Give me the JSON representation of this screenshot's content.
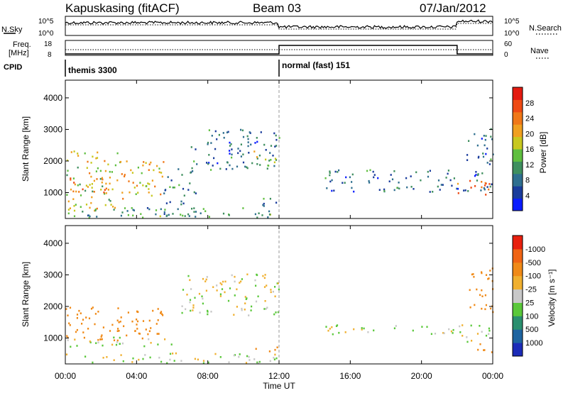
{
  "header": {
    "radar": "Kapuskasing (fitACF)",
    "beam": "Beam 03",
    "date": "07/Jan/2012"
  },
  "noise_panel": {
    "left_label": "N.Sky",
    "right_label": "N.Search",
    "left_ticks": [
      "10^5",
      "10^0"
    ],
    "right_ticks": [
      "10^5",
      "10^0"
    ]
  },
  "freq_panel": {
    "left_label_1": "Freq.",
    "left_label_2": "[MHz]",
    "right_label": "Nave",
    "left_ticks": [
      "18",
      "8"
    ],
    "right_ticks": [
      "60",
      "0"
    ]
  },
  "cpid_panel": {
    "label": "CPID",
    "segments": [
      {
        "label": "themis 3300",
        "start_h": 0,
        "end_h": 12
      },
      {
        "label": "normal (fast) 151",
        "start_h": 12,
        "end_h": 24
      }
    ]
  },
  "x_axis": {
    "title": "Time UT",
    "ticks": [
      "00:00",
      "04:00",
      "08:00",
      "12:00",
      "16:00",
      "20:00",
      "00:00"
    ],
    "range_h": [
      0,
      24
    ]
  },
  "power_colorbar": {
    "title": "Power [dB]",
    "ticks": [
      "4",
      "8",
      "12",
      "16",
      "20",
      "24",
      "28"
    ],
    "colors": [
      "#0a1cff",
      "#1a3c9c",
      "#2f6f8f",
      "#3f8f5f",
      "#5fbf3f",
      "#c8c820",
      "#f0a020",
      "#f07818",
      "#ee4a14",
      "#e41a10"
    ]
  },
  "velocity_colorbar": {
    "title": "Velocity [m s⁻¹]",
    "ticks": [
      "1000",
      "500",
      "100",
      "25",
      "-25",
      "-100",
      "-500",
      "-1000"
    ],
    "colors": [
      "#1c2cb8",
      "#1e64a0",
      "#2a8f6f",
      "#5ac83a",
      "#c8c8c8",
      "#f0b030",
      "#f08a18",
      "#f06414",
      "#e8200e"
    ]
  },
  "chart_data": [
    {
      "type": "heatmap",
      "title": "",
      "xlabel": "Time UT",
      "ylabel": "Slant Range [km]",
      "xlim_h": [
        0,
        24
      ],
      "ylim_km": [
        180,
        4560
      ],
      "yticks": [
        "1000",
        "2000",
        "3000",
        "4000"
      ],
      "colorbar_label": "Power [dB]",
      "echo_regions": [
        {
          "t0": 0.0,
          "t1": 3.0,
          "r0": 400,
          "r1": 2300,
          "level": 0.55
        },
        {
          "t0": 0.2,
          "t1": 2.5,
          "r0": 900,
          "r1": 1500,
          "level": 0.7
        },
        {
          "t0": 3.0,
          "t1": 5.5,
          "r0": 600,
          "r1": 2000,
          "level": 0.6
        },
        {
          "t0": 5.5,
          "t1": 7.5,
          "r0": 200,
          "r1": 1800,
          "level": 0.3
        },
        {
          "t0": 7.0,
          "t1": 12.0,
          "r0": 1700,
          "r1": 3000,
          "level": 0.25
        },
        {
          "t0": 10.0,
          "t1": 12.0,
          "r0": 1800,
          "r1": 2300,
          "level": 0.45
        },
        {
          "t0": 10.5,
          "t1": 12.0,
          "r0": 500,
          "r1": 800,
          "level": 0.3
        },
        {
          "t0": 14.5,
          "t1": 24.0,
          "r0": 1000,
          "r1": 1700,
          "level": 0.25
        },
        {
          "t0": 22.0,
          "t1": 24.0,
          "r0": 900,
          "r1": 1400,
          "level": 0.75
        },
        {
          "t0": 22.5,
          "t1": 24.0,
          "r0": 1800,
          "r1": 3000,
          "level": 0.25
        },
        {
          "t0": 0.0,
          "t1": 12.0,
          "r0": 180,
          "r1": 500,
          "level": 0.35
        }
      ]
    },
    {
      "type": "heatmap",
      "title": "",
      "xlabel": "Time UT",
      "ylabel": "Slant Range [km]",
      "xlim_h": [
        0,
        24
      ],
      "ylim_km": [
        180,
        4560
      ],
      "yticks": [
        "1000",
        "2000",
        "3000",
        "4000"
      ],
      "colorbar_label": "Velocity [m s⁻¹]",
      "echo_regions": [
        {
          "t0": 0.0,
          "t1": 5.5,
          "r0": 900,
          "r1": 2000,
          "vel": -300
        },
        {
          "t0": 0.0,
          "t1": 6.0,
          "r0": 700,
          "r1": 1000,
          "vel": 0
        },
        {
          "t0": 6.5,
          "t1": 12.0,
          "r0": 1700,
          "r1": 3000,
          "vel": 0
        },
        {
          "t0": 10.5,
          "t1": 12.0,
          "r0": 500,
          "r1": 700,
          "vel": -200
        },
        {
          "t0": 14.5,
          "t1": 22.0,
          "r0": 1100,
          "r1": 1400,
          "vel": 0
        },
        {
          "t0": 22.0,
          "t1": 24.0,
          "r0": 800,
          "r1": 1400,
          "vel": 0
        },
        {
          "t0": 22.5,
          "t1": 24.0,
          "r0": 1800,
          "r1": 3200,
          "vel": -300
        },
        {
          "t0": 23.0,
          "t1": 24.0,
          "r0": 400,
          "r1": 800,
          "vel": -400
        },
        {
          "t0": 0.0,
          "t1": 12.0,
          "r0": 180,
          "r1": 500,
          "vel": 0
        }
      ]
    }
  ]
}
